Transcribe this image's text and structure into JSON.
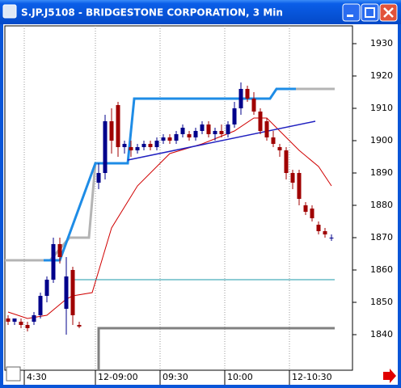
{
  "window": {
    "title": "S.JP.J5108 - BRIDGESTONE CORPORATION, 3 Min"
  },
  "chart_data": {
    "type": "candlestick",
    "open": [
      1845,
      1844,
      1844,
      1843,
      1844,
      1846,
      1852,
      1857,
      1868,
      1848,
      1860,
      1843,
      null,
      null,
      1887,
      1890,
      1906,
      1911,
      1898,
      1898,
      1897,
      1898,
      1899,
      1898,
      1900,
      1901,
      1900,
      1902,
      1902,
      1901,
      1903,
      1905,
      1902,
      1903,
      1902,
      1905,
      1910,
      1916,
      1913,
      1909,
      1906,
      1901,
      1898,
      1897,
      1890,
      1890,
      1880,
      1879,
      1874,
      1872,
      1870
    ],
    "high": [
      1846,
      1845,
      1845,
      1844,
      1847,
      1853,
      1858,
      1870,
      1870,
      1864,
      1861,
      1844,
      null,
      null,
      1893,
      1908,
      1910,
      1912,
      1900,
      1900,
      1899,
      1900,
      1900,
      1901,
      1902,
      1902,
      1903,
      1905,
      1903,
      1904,
      1906,
      1906,
      1904,
      1905,
      1906,
      1912,
      1918,
      1917,
      1915,
      1910,
      1907,
      1903,
      1899,
      1898,
      1891,
      1891,
      1881,
      1880,
      1875,
      1873,
      1871
    ],
    "low": [
      1843,
      1843,
      1842,
      1841,
      1843,
      1845,
      1850,
      1856,
      1862,
      1840,
      1843,
      1842,
      null,
      null,
      1885,
      1888,
      1896,
      1895,
      1896,
      1895,
      1896,
      1897,
      1897,
      1897,
      1899,
      1899,
      1899,
      1901,
      1900,
      1900,
      1902,
      1901,
      1900,
      1901,
      1901,
      1904,
      1908,
      1912,
      1908,
      1902,
      1900,
      1898,
      1895,
      1888,
      1885,
      1880,
      1877,
      1875,
      1871,
      1870,
      1869
    ],
    "close": [
      1844,
      1845,
      1843,
      1842,
      1846,
      1852,
      1857,
      1868,
      1864,
      1858,
      1846,
      1842.5,
      null,
      null,
      1890,
      1906,
      1900,
      1898,
      1899,
      1897,
      1898,
      1899,
      1898,
      1900,
      1901,
      1900,
      1902,
      1904,
      1901,
      1903,
      1905,
      1902,
      1903,
      1902,
      1905,
      1910,
      1916,
      1913,
      1909,
      1903,
      1901,
      1899,
      1897,
      1890,
      1887,
      1882,
      1878,
      1876,
      1872,
      1871,
      1870
    ],
    "up_color": "#00008b",
    "down_color": "#a00000",
    "ylim": [
      1829,
      1935.5
    ],
    "yticks": [
      1840,
      1850,
      1860,
      1870,
      1880,
      1890,
      1900,
      1910,
      1920,
      1930
    ],
    "xlim": [
      -0.5,
      53.25
    ],
    "xticks": [
      {
        "value": 2.5,
        "label": "4:30"
      },
      {
        "value": 13.5,
        "label": "12-09:00"
      },
      {
        "value": 23.5,
        "label": "09:30"
      },
      {
        "value": 33.5,
        "label": "10:00"
      },
      {
        "value": 43.5,
        "label": "12-10:30"
      }
    ],
    "grid": true,
    "lines": [
      {
        "color": "#b4b4b4",
        "width": 3,
        "x": [
          -0.5,
          6.5,
          9.5,
          12.5,
          13.5,
          14
        ],
        "values": [
          1863,
          1863,
          1870,
          1870,
          1893,
          1893
        ]
      },
      {
        "color": "#1e8ce6",
        "width": 3,
        "x": [
          5.5,
          8,
          13.5,
          18.5,
          19.5,
          40.5,
          41.5,
          44.5
        ],
        "values": [
          1863,
          1863,
          1893,
          1893,
          1913,
          1913,
          1916,
          1916
        ]
      },
      {
        "color": "#b4b4b4",
        "width": 3,
        "x": [
          44.5,
          50.5
        ],
        "values": [
          1916,
          1916
        ]
      },
      {
        "color": "#d00000",
        "width": 1,
        "x": [
          0,
          3,
          6,
          9,
          10,
          13,
          16,
          20,
          25,
          30,
          35,
          38,
          40,
          42,
          45,
          48,
          50
        ],
        "values": [
          1847,
          1845,
          1846,
          1851,
          1852,
          1853,
          1873,
          1886,
          1896,
          1899,
          1903,
          1907,
          1907,
          1903,
          1897,
          1892,
          1886
        ]
      },
      {
        "color": "#2020c0",
        "width": 1.5,
        "x": [
          18.5,
          47.5
        ],
        "values": [
          1894,
          1906
        ]
      },
      {
        "color": "#1b9aaa",
        "width": 1,
        "x": [
          10,
          50.5
        ],
        "values": [
          1857,
          1857
        ]
      },
      {
        "color": "#808080",
        "width": 3,
        "x": [
          14,
          14,
          50.5
        ],
        "values": [
          1829,
          1842,
          1842
        ]
      }
    ]
  }
}
